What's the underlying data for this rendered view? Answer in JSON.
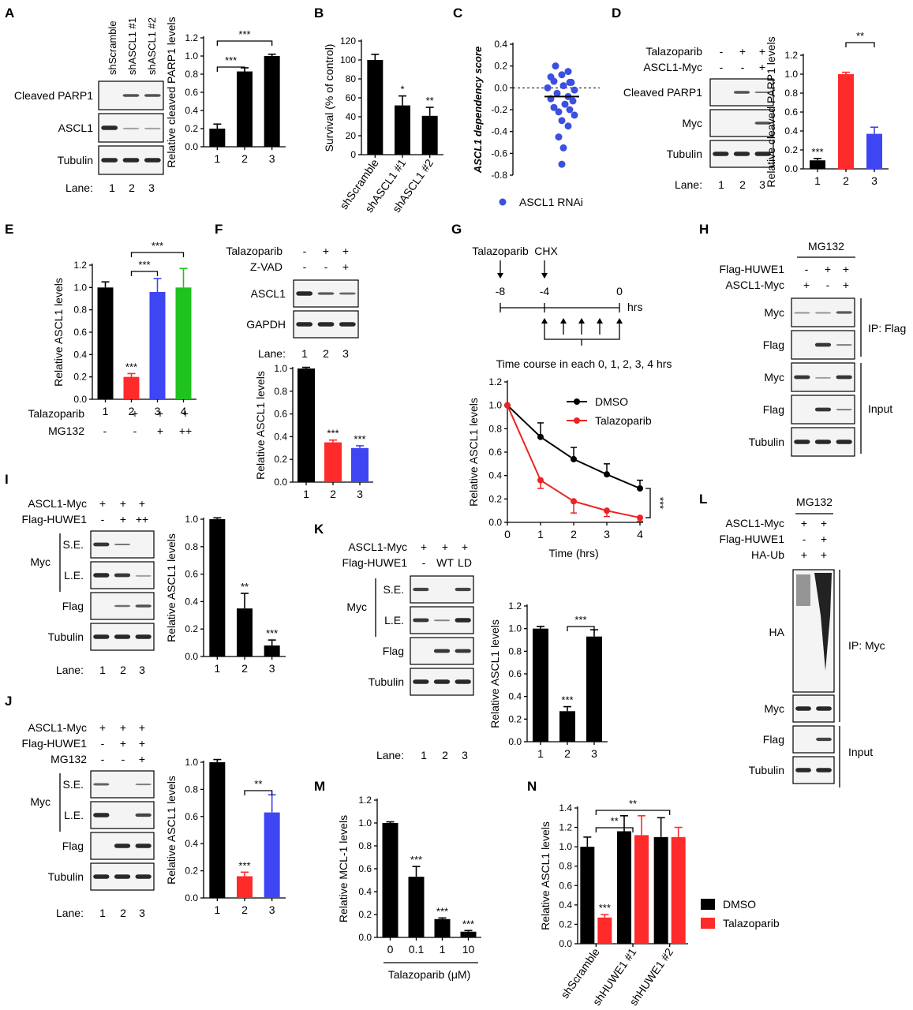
{
  "panels": [
    {
      "id": "A",
      "blot": {
        "lanes": [
          "shScramble",
          "shASCL1 #1",
          "shASCL1 #2"
        ],
        "rows": [
          "Cleaved PARP1",
          "ASCL1",
          "Tubulin"
        ],
        "lane_label": "Lane:",
        "lane_numbers": [
          "1",
          "2",
          "3"
        ]
      }
    },
    {
      "id": "B"
    },
    {
      "id": "C"
    },
    {
      "id": "D",
      "blot": {
        "conditions": [
          {
            "name": "Talazoparib",
            "marks": [
              "-",
              "+",
              "+"
            ]
          },
          {
            "name": "ASCL1-Myc",
            "marks": [
              "-",
              "-",
              "+"
            ]
          }
        ],
        "rows": [
          "Cleaved PARP1",
          "Myc",
          "Tubulin"
        ],
        "lane_label": "Lane:",
        "lane_numbers": [
          "1",
          "2",
          "3"
        ]
      }
    },
    {
      "id": "E",
      "conditions": [
        {
          "name": "Talazoparib",
          "marks": [
            "-",
            "+",
            "+",
            "+"
          ]
        },
        {
          "name": "MG132",
          "marks": [
            "-",
            "-",
            "+",
            "++"
          ]
        }
      ]
    },
    {
      "id": "F",
      "blot": {
        "conditions": [
          {
            "name": "Talazoparib",
            "marks": [
              "-",
              "+",
              "+"
            ]
          },
          {
            "name": "Z-VAD",
            "marks": [
              "-",
              "-",
              "+"
            ]
          }
        ],
        "rows": [
          "ASCL1",
          "GAPDH"
        ],
        "lane_label": "Lane:",
        "lane_numbers": [
          "1",
          "2",
          "3"
        ]
      }
    },
    {
      "id": "G",
      "schematic": {
        "drug1": "Talazoparib",
        "drug2": "CHX",
        "ticks": [
          "-8",
          "-4",
          "0"
        ],
        "unit": "hrs",
        "caption": "Time course in each 0, 1, 2, 3, 4 hrs"
      }
    },
    {
      "id": "H",
      "blot": {
        "header": "MG132",
        "conditions": [
          {
            "name": "Flag-HUWE1",
            "marks": [
              "-",
              "+",
              "+"
            ]
          },
          {
            "name": "ASCL1-Myc",
            "marks": [
              "+",
              "-",
              "+"
            ]
          }
        ],
        "rows": [
          "Myc",
          "Flag",
          "Myc",
          "Flag",
          "Tubulin"
        ],
        "groups": [
          "IP: Flag",
          "Input"
        ]
      }
    },
    {
      "id": "I",
      "blot": {
        "conditions": [
          {
            "name": "ASCL1-Myc",
            "marks": [
              "+",
              "+",
              "+"
            ]
          },
          {
            "name": "Flag-HUWE1",
            "marks": [
              "-",
              "+",
              "++"
            ]
          }
        ],
        "rows": [
          "S.E.",
          "L.E.",
          "Flag",
          "Tubulin"
        ],
        "group": "Myc",
        "lane_label": "Lane:",
        "lane_numbers": [
          "1",
          "2",
          "3"
        ]
      }
    },
    {
      "id": "J",
      "blot": {
        "conditions": [
          {
            "name": "ASCL1-Myc",
            "marks": [
              "+",
              "+",
              "+"
            ]
          },
          {
            "name": "Flag-HUWE1",
            "marks": [
              "-",
              "+",
              "+"
            ]
          },
          {
            "name": "MG132",
            "marks": [
              "-",
              "-",
              "+"
            ]
          }
        ],
        "rows": [
          "S.E.",
          "L.E.",
          "Flag",
          "Tubulin"
        ],
        "group": "Myc",
        "lane_label": "Lane:",
        "lane_numbers": [
          "1",
          "2",
          "3"
        ]
      }
    },
    {
      "id": "K",
      "blot": {
        "conditions": [
          {
            "name": "ASCL1-Myc",
            "marks": [
              "+",
              "+",
              "+"
            ]
          },
          {
            "name": "Flag-HUWE1",
            "marks": [
              "-",
              "WT",
              "LD"
            ]
          }
        ],
        "rows": [
          "S.E.",
          "L.E.",
          "Flag",
          "Tubulin"
        ],
        "group": "Myc",
        "lane_label": "Lane:",
        "lane_numbers": [
          "1",
          "2",
          "3"
        ]
      }
    },
    {
      "id": "L",
      "blot": {
        "header": "MG132",
        "conditions": [
          {
            "name": "ASCL1-Myc",
            "marks": [
              "+",
              "+"
            ]
          },
          {
            "name": "Flag-HUWE1",
            "marks": [
              "-",
              "+"
            ]
          },
          {
            "name": "HA-Ub",
            "marks": [
              "+",
              "+"
            ]
          }
        ],
        "rows": [
          "HA",
          "Myc",
          "Flag",
          "Tubulin"
        ],
        "groups": [
          "IP: Myc",
          "Input"
        ]
      }
    },
    {
      "id": "M"
    },
    {
      "id": "N"
    }
  ],
  "chart_data": [
    {
      "panel": "A",
      "type": "bar",
      "categories": [
        "1",
        "2",
        "3"
      ],
      "values": [
        0.2,
        0.83,
        1.0
      ],
      "errors": [
        0.05,
        0.04,
        0.02
      ],
      "colors": [
        "#000000",
        "#000000",
        "#000000"
      ],
      "ylabel": "Relative cleaved PARP1 levels",
      "ylim": [
        0,
        1.2
      ],
      "yticks": [
        "0.0",
        "0.2",
        "0.4",
        "0.6",
        "0.8",
        "1.0",
        "1.2"
      ],
      "sig_brackets": [
        {
          "from": 1,
          "to": 2,
          "label": "***"
        },
        {
          "from": 1,
          "to": 3,
          "label": "***"
        }
      ]
    },
    {
      "panel": "B",
      "type": "bar",
      "categories": [
        "shScramble",
        "shASCL1 #1",
        "shASCL1 #2"
      ],
      "values": [
        100,
        52,
        41
      ],
      "errors": [
        6,
        10,
        9
      ],
      "colors": [
        "#000000",
        "#000000",
        "#000000"
      ],
      "ylabel": "Survival (% of control)",
      "ylim": [
        0,
        120
      ],
      "yticks": [
        "0",
        "20",
        "40",
        "60",
        "80",
        "100",
        "120"
      ],
      "bar_labels": [
        "",
        "*",
        "**"
      ]
    },
    {
      "panel": "C",
      "type": "scatter",
      "values": [
        0.2,
        0.15,
        0.1,
        0.12,
        0.05,
        0.06,
        0.05,
        0.0,
        0.02,
        -0.02,
        -0.05,
        -0.08,
        -0.1,
        -0.12,
        -0.15,
        -0.18,
        -0.2,
        -0.22,
        -0.25,
        -0.3,
        -0.35,
        -0.45,
        -0.55,
        -0.7
      ],
      "mean": -0.08,
      "ylabel": "ASCL1 dependency score",
      "ylim": [
        -0.8,
        0.4
      ],
      "yticks": [
        "-0.8",
        "-0.6",
        "-0.4",
        "-0.2",
        "0.0",
        "0.2",
        "0.4"
      ],
      "legend": "ASCL1 RNAi",
      "color": "#3b4fe0"
    },
    {
      "panel": "D",
      "type": "bar",
      "categories": [
        "1",
        "2",
        "3"
      ],
      "values": [
        0.09,
        1.0,
        0.37
      ],
      "errors": [
        0.02,
        0.02,
        0.07
      ],
      "colors": [
        "#000000",
        "#ff2a2a",
        "#3d46f2"
      ],
      "ylabel": "Relative cleaved PARP1 levels",
      "ylim": [
        0,
        1.2
      ],
      "yticks": [
        "0.0",
        "0.2",
        "0.4",
        "0.6",
        "0.8",
        "1.0",
        "1.2"
      ],
      "bar_labels": [
        "***",
        "",
        ""
      ],
      "sig_brackets": [
        {
          "from": 2,
          "to": 3,
          "label": "**"
        }
      ]
    },
    {
      "panel": "E",
      "type": "bar",
      "categories": [
        "1",
        "2",
        "3",
        "4"
      ],
      "values": [
        1.0,
        0.2,
        0.96,
        1.0
      ],
      "errors": [
        0.05,
        0.03,
        0.12,
        0.17
      ],
      "colors": [
        "#000000",
        "#ff2a2a",
        "#3d46f2",
        "#1fc21f"
      ],
      "ylabel": "Relative ASCL1 levels",
      "ylim": [
        0,
        1.2
      ],
      "yticks": [
        "0.0",
        "0.2",
        "0.4",
        "0.6",
        "0.8",
        "1.0",
        "1.2"
      ],
      "bar_labels": [
        "",
        "***",
        "",
        ""
      ],
      "sig_brackets": [
        {
          "from": 2,
          "to": 3,
          "label": "***"
        },
        {
          "from": 2,
          "to": 4,
          "label": "***"
        }
      ]
    },
    {
      "panel": "F",
      "type": "bar",
      "categories": [
        "1",
        "2",
        "3"
      ],
      "values": [
        1.0,
        0.35,
        0.3
      ],
      "errors": [
        0.01,
        0.02,
        0.02
      ],
      "colors": [
        "#000000",
        "#ff2a2a",
        "#3d46f2"
      ],
      "ylabel": "Relative ASCL1 levels",
      "ylim": [
        0,
        1.0
      ],
      "yticks": [
        "0.0",
        "0.2",
        "0.4",
        "0.6",
        "0.8",
        "1.0"
      ],
      "bar_labels": [
        "",
        "***",
        "***"
      ]
    },
    {
      "panel": "G",
      "type": "line",
      "x": [
        0,
        1,
        2,
        3,
        4
      ],
      "series": [
        {
          "name": "DMSO",
          "values": [
            1.0,
            0.73,
            0.54,
            0.41,
            0.29
          ],
          "errors": [
            0,
            0.12,
            0.1,
            0.09,
            0.07
          ],
          "color": "#000000"
        },
        {
          "name": "Talazoparib",
          "values": [
            1.0,
            0.36,
            0.18,
            0.1,
            0.04
          ],
          "errors": [
            0,
            0.07,
            0.1,
            0.05,
            0.03
          ],
          "color": "#ee2222"
        }
      ],
      "xlabel": "Time (hrs)",
      "ylabel": "Relative ASCL1 levels",
      "xlim": [
        0,
        4
      ],
      "ylim": [
        0,
        1.2
      ],
      "yticks": [
        "0.0",
        "0.2",
        "0.4",
        "0.6",
        "0.8",
        "1.0",
        "1.2"
      ],
      "xticks": [
        "0",
        "1",
        "2",
        "3",
        "4"
      ],
      "sig_label": "***"
    },
    {
      "panel": "I",
      "type": "bar",
      "categories": [
        "1",
        "2",
        "3"
      ],
      "values": [
        1.0,
        0.35,
        0.08
      ],
      "errors": [
        0.01,
        0.11,
        0.04
      ],
      "colors": [
        "#000000",
        "#000000",
        "#000000"
      ],
      "ylabel": "Relative ASCL1 levels",
      "ylim": [
        0,
        1.0
      ],
      "yticks": [
        "0.0",
        "0.2",
        "0.4",
        "0.6",
        "0.8",
        "1.0"
      ],
      "bar_labels": [
        "",
        "**",
        "***"
      ]
    },
    {
      "panel": "J",
      "type": "bar",
      "categories": [
        "1",
        "2",
        "3"
      ],
      "values": [
        1.0,
        0.16,
        0.63
      ],
      "errors": [
        0.02,
        0.03,
        0.13
      ],
      "colors": [
        "#000000",
        "#ff2a2a",
        "#3d46f2"
      ],
      "ylabel": "Relative ASCL1 levels",
      "ylim": [
        0,
        1.0
      ],
      "yticks": [
        "0.0",
        "0.2",
        "0.4",
        "0.6",
        "0.8",
        "1.0"
      ],
      "bar_labels": [
        "",
        "***",
        ""
      ],
      "sig_brackets": [
        {
          "from": 2,
          "to": 3,
          "label": "**"
        }
      ]
    },
    {
      "panel": "K",
      "type": "bar",
      "categories": [
        "1",
        "2",
        "3"
      ],
      "values": [
        1.0,
        0.27,
        0.93
      ],
      "errors": [
        0.02,
        0.04,
        0.06
      ],
      "colors": [
        "#000000",
        "#000000",
        "#000000"
      ],
      "ylabel": "Relative ASCL1 levels",
      "ylim": [
        0,
        1.2
      ],
      "yticks": [
        "0.0",
        "0.2",
        "0.4",
        "0.6",
        "0.8",
        "1.0",
        "1.2"
      ],
      "bar_labels": [
        "",
        "***",
        ""
      ],
      "sig_brackets": [
        {
          "from": 2,
          "to": 3,
          "label": "***"
        }
      ]
    },
    {
      "panel": "M",
      "type": "bar",
      "categories": [
        "0",
        "0.1",
        "1",
        "10"
      ],
      "values": [
        1.0,
        0.53,
        0.16,
        0.05
      ],
      "errors": [
        0.01,
        0.09,
        0.01,
        0.01
      ],
      "colors": [
        "#000000",
        "#000000",
        "#000000",
        "#000000"
      ],
      "ylabel": "Relative MCL-1 levels",
      "xlabel": "Talazoparib (μM)",
      "ylim": [
        0,
        1.2
      ],
      "yticks": [
        "0.0",
        "0.2",
        "0.4",
        "0.6",
        "0.8",
        "1.0",
        "1.2"
      ],
      "bar_labels": [
        "",
        "***",
        "***",
        "***"
      ]
    },
    {
      "panel": "N",
      "type": "bar",
      "categories": [
        "shScramble",
        "shHUWE1 #1",
        "shHUWE1 #2"
      ],
      "series": [
        {
          "name": "DMSO",
          "values": [
            1.0,
            1.16,
            1.1
          ],
          "errors": [
            0.1,
            0.16,
            0.2
          ],
          "color": "#000000"
        },
        {
          "name": "Talazoparib",
          "values": [
            0.27,
            1.12,
            1.1
          ],
          "errors": [
            0.03,
            0.2,
            0.1
          ],
          "color": "#ff2a2a"
        }
      ],
      "ylabel": "Relative ASCL1 levels",
      "ylim": [
        0,
        1.4
      ],
      "yticks": [
        "0.0",
        "0.2",
        "0.4",
        "0.6",
        "0.8",
        "1.0",
        "1.2",
        "1.4"
      ],
      "bar_labels": [
        "***"
      ],
      "sig_brackets": [
        {
          "from": 1,
          "to": 2,
          "label": "**"
        },
        {
          "from": 1,
          "to": 3,
          "label": "**"
        }
      ]
    }
  ]
}
